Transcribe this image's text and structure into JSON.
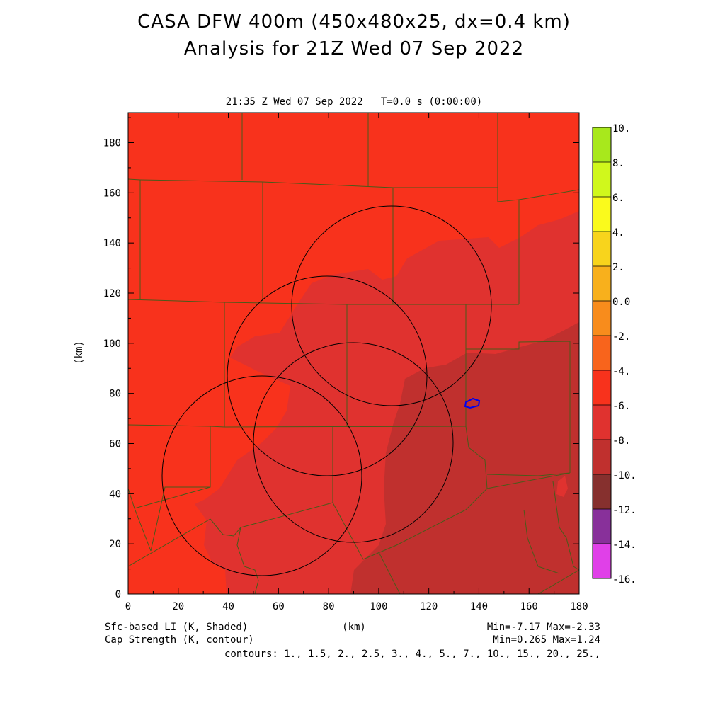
{
  "title_line1": "CASA DFW 400m (450x480x25, dx=0.4 km)",
  "title_line2": "Analysis for 21Z Wed 07 Sep 2022",
  "subtitle": "21:35 Z Wed 07 Sep 2022   T=0.0 s (0:00:00)",
  "axes": {
    "x_label": "(km)",
    "y_label": "(km)",
    "x_ticks": [
      "0",
      "20",
      "40",
      "60",
      "80",
      "100",
      "120",
      "140",
      "160",
      "180"
    ],
    "y_ticks": [
      "0",
      "20",
      "40",
      "60",
      "80",
      "100",
      "120",
      "140",
      "160",
      "180"
    ]
  },
  "footer": {
    "field1_label": "Sfc-based LI (K, Shaded)",
    "field2_label": "Cap Strength (K, contour)",
    "field1_range": "Min=-7.17 Max=-2.33",
    "field2_range": "Min=0.265 Max=1.24",
    "contours": "contours: 1., 1.5, 2., 2.5, 3., 4., 5., 7., 10., 15., 20., 25.,"
  },
  "colorbar": {
    "labels": [
      "10.",
      "8.",
      "6.",
      "4.",
      "2.",
      "0.0",
      "-2.",
      "-4.",
      "-6.",
      "-8.",
      "-10.",
      "-12.",
      "-14.",
      "-16."
    ],
    "colors": [
      "#a8e81c",
      "#d0f81c",
      "#fafa1c",
      "#f8d41c",
      "#f8b01c",
      "#f88c1c",
      "#f8641c",
      "#f8321c",
      "#e0322f",
      "#c0302e",
      "#86302e",
      "#88309a",
      "#c030c0",
      "#e040e8"
    ]
  },
  "map": {
    "field_colors": {
      "class_m2_m4": "#f8321c",
      "class_m4_m6": "#e0322f",
      "class_m6_m8": "#c0302e"
    },
    "county_line_color": "#4a5a1a",
    "radar_ring_color": "#000000",
    "contour_color": "#0000ee"
  }
}
